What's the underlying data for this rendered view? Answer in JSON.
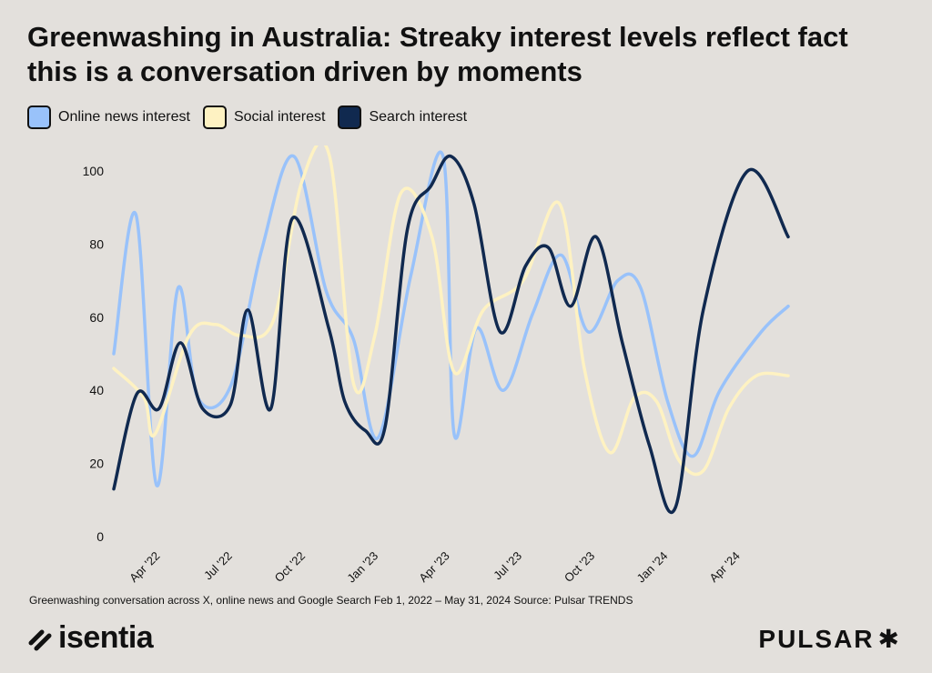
{
  "title_line1": "Greenwashing in Australia: Streaky interest levels reflect fact",
  "title_line2": "this is a conversation driven by moments",
  "footnote": "Greenwashing conversation across X, online news and Google Search Feb 1, 2022 – May 31, 2024 Source: Pulsar TRENDS",
  "logo_left": "isentia",
  "logo_right": "PULSAR",
  "logo_right_glyph": "✱",
  "chart_data": {
    "type": "line",
    "title": "Greenwashing in Australia: Streaky interest levels reflect fact this is a conversation driven by moments",
    "xlabel": "",
    "ylabel": "",
    "ylim": [
      0,
      100
    ],
    "yticks": [
      0,
      20,
      40,
      60,
      80,
      100
    ],
    "xlim": [
      "2022-02-01",
      "2024-05-31"
    ],
    "x_ticks": [
      {
        "label": "Apr '22",
        "date": "2022-04-01"
      },
      {
        "label": "Jul '22",
        "date": "2022-07-01"
      },
      {
        "label": "Oct '22",
        "date": "2022-10-01"
      },
      {
        "label": "Jan '23",
        "date": "2023-01-01"
      },
      {
        "label": "Apr '23",
        "date": "2023-04-01"
      },
      {
        "label": "Jul '23",
        "date": "2023-07-01"
      },
      {
        "label": "Oct '23",
        "date": "2023-10-01"
      },
      {
        "label": "Jan '24",
        "date": "2024-01-01"
      },
      {
        "label": "Apr '24",
        "date": "2024-04-01"
      }
    ],
    "legend_position": "top-left",
    "grid": false,
    "series": [
      {
        "name": "Online news interest",
        "color": "#99c2fa",
        "points": [
          [
            "2022-02-01",
            50
          ],
          [
            "2022-03-01",
            88
          ],
          [
            "2022-03-27",
            14
          ],
          [
            "2022-04-23",
            68
          ],
          [
            "2022-05-18",
            38
          ],
          [
            "2022-06-28",
            41
          ],
          [
            "2022-08-06",
            78
          ],
          [
            "2022-09-16",
            104
          ],
          [
            "2022-10-27",
            67
          ],
          [
            "2022-11-30",
            54
          ],
          [
            "2022-12-31",
            27
          ],
          [
            "2023-02-10",
            71
          ],
          [
            "2023-03-23",
            104
          ],
          [
            "2023-04-06",
            28
          ],
          [
            "2023-05-04",
            57
          ],
          [
            "2023-06-07",
            40
          ],
          [
            "2023-07-14",
            61
          ],
          [
            "2023-08-19",
            77
          ],
          [
            "2023-09-22",
            56
          ],
          [
            "2023-10-29",
            70
          ],
          [
            "2023-11-27",
            68
          ],
          [
            "2023-12-31",
            37
          ],
          [
            "2024-02-01",
            22
          ],
          [
            "2024-03-06",
            40
          ],
          [
            "2024-04-27",
            56
          ],
          [
            "2024-05-31",
            63
          ]
        ]
      },
      {
        "name": "Social interest",
        "color": "#fef2c2",
        "points": [
          [
            "2022-02-01",
            46
          ],
          [
            "2022-03-11",
            38
          ],
          [
            "2022-03-25",
            28
          ],
          [
            "2022-05-07",
            55
          ],
          [
            "2022-06-09",
            58
          ],
          [
            "2022-07-11",
            55
          ],
          [
            "2022-08-21",
            59
          ],
          [
            "2022-09-26",
            97
          ],
          [
            "2022-10-31",
            104
          ],
          [
            "2022-11-30",
            42
          ],
          [
            "2022-12-27",
            55
          ],
          [
            "2023-01-29",
            94
          ],
          [
            "2023-03-09",
            82
          ],
          [
            "2023-04-06",
            45
          ],
          [
            "2023-05-13",
            62
          ],
          [
            "2023-07-02",
            70
          ],
          [
            "2023-08-17",
            91
          ],
          [
            "2023-09-17",
            46
          ],
          [
            "2023-10-19",
            23
          ],
          [
            "2023-11-19",
            38
          ],
          [
            "2023-12-17",
            37
          ],
          [
            "2024-01-14",
            21
          ],
          [
            "2024-02-14",
            18
          ],
          [
            "2024-03-17",
            35
          ],
          [
            "2024-04-21",
            44
          ],
          [
            "2024-05-31",
            44
          ]
        ]
      },
      {
        "name": "Search interest",
        "color": "#10294f",
        "points": [
          [
            "2022-02-01",
            13
          ],
          [
            "2022-03-02",
            39
          ],
          [
            "2022-03-30",
            35
          ],
          [
            "2022-04-26",
            53
          ],
          [
            "2022-05-24",
            35
          ],
          [
            "2022-06-28",
            36
          ],
          [
            "2022-07-20",
            62
          ],
          [
            "2022-08-18",
            35
          ],
          [
            "2022-09-14",
            87
          ],
          [
            "2022-10-30",
            57
          ],
          [
            "2022-11-19",
            37
          ],
          [
            "2022-12-15",
            29
          ],
          [
            "2023-01-09",
            30
          ],
          [
            "2023-02-06",
            84
          ],
          [
            "2023-03-08",
            96
          ],
          [
            "2023-04-02",
            104
          ],
          [
            "2023-05-01",
            91
          ],
          [
            "2023-06-03",
            56
          ],
          [
            "2023-07-05",
            74
          ],
          [
            "2023-08-03",
            79
          ],
          [
            "2023-08-31",
            63
          ],
          [
            "2023-10-02",
            82
          ],
          [
            "2023-11-04",
            53
          ],
          [
            "2023-12-08",
            25
          ],
          [
            "2024-01-10",
            8
          ],
          [
            "2024-02-14",
            62
          ],
          [
            "2024-04-10",
            100
          ],
          [
            "2024-05-31",
            82
          ]
        ]
      }
    ]
  }
}
